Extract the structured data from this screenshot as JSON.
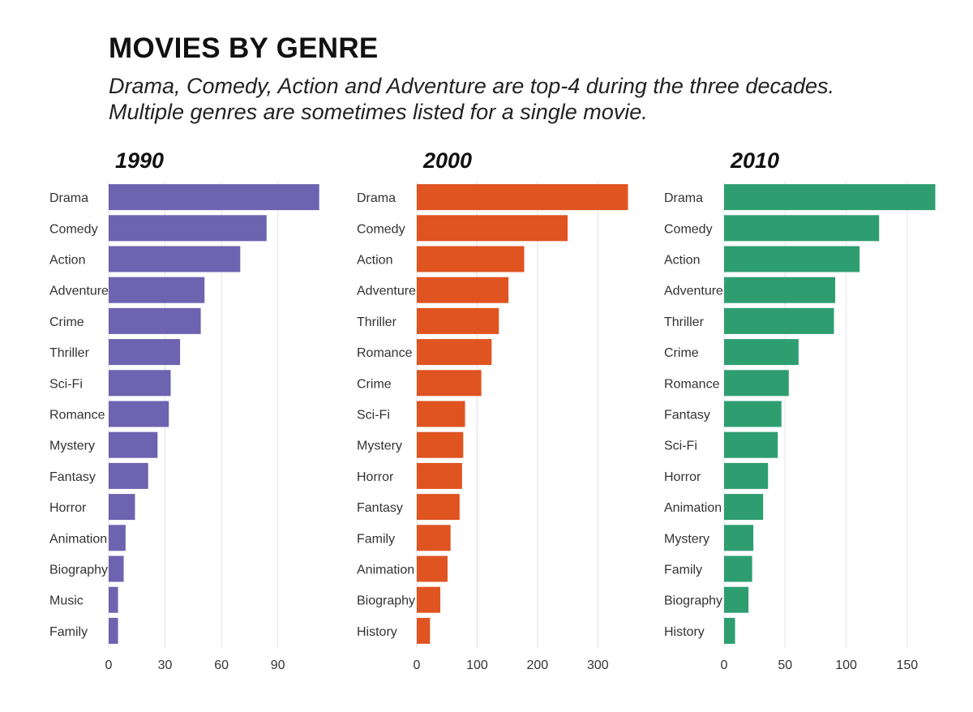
{
  "title": "MOVIES BY GENRE",
  "subtitle": [
    "Drama, Comedy, Action and Adventure are top-4 during the three decades.",
    "Multiple genres are sometimes listed for a single movie."
  ],
  "chart_data": [
    {
      "type": "bar",
      "orientation": "horizontal",
      "title": "1990",
      "color": "#6d63b0",
      "categories": [
        "Drama",
        "Comedy",
        "Action",
        "Adventure",
        "Crime",
        "Thriller",
        "Sci-Fi",
        "Romance",
        "Mystery",
        "Fantasy",
        "Horror",
        "Animation",
        "Biography",
        "Music",
        "Family"
      ],
      "values": [
        112,
        84,
        70,
        51,
        49,
        38,
        33,
        32,
        26,
        21,
        14,
        9,
        8,
        5,
        5
      ],
      "xlim": [
        0,
        113
      ],
      "ticks": [
        0,
        30,
        60,
        90
      ],
      "grid": true
    },
    {
      "type": "bar",
      "orientation": "horizontal",
      "title": "2000",
      "color": "#df5420",
      "categories": [
        "Drama",
        "Comedy",
        "Action",
        "Adventure",
        "Thriller",
        "Romance",
        "Crime",
        "Sci-Fi",
        "Mystery",
        "Horror",
        "Fantasy",
        "Family",
        "Animation",
        "Biography",
        "History"
      ],
      "values": [
        350,
        250,
        178,
        152,
        136,
        124,
        107,
        80,
        77,
        75,
        71,
        56,
        51,
        39,
        22
      ],
      "xlim": [
        0,
        352
      ],
      "ticks": [
        0,
        100,
        200,
        300
      ],
      "grid": true
    },
    {
      "type": "bar",
      "orientation": "horizontal",
      "title": "2010",
      "color": "#2e9e70",
      "categories": [
        "Drama",
        "Comedy",
        "Action",
        "Adventure",
        "Thriller",
        "Crime",
        "Romance",
        "Fantasy",
        "Sci-Fi",
        "Horror",
        "Animation",
        "Mystery",
        "Family",
        "Biography",
        "History"
      ],
      "values": [
        173,
        127,
        111,
        91,
        90,
        61,
        53,
        47,
        44,
        36,
        32,
        24,
        23,
        20,
        9
      ],
      "xlim": [
        0,
        174
      ],
      "ticks": [
        0,
        50,
        100,
        150
      ],
      "grid": true
    }
  ]
}
